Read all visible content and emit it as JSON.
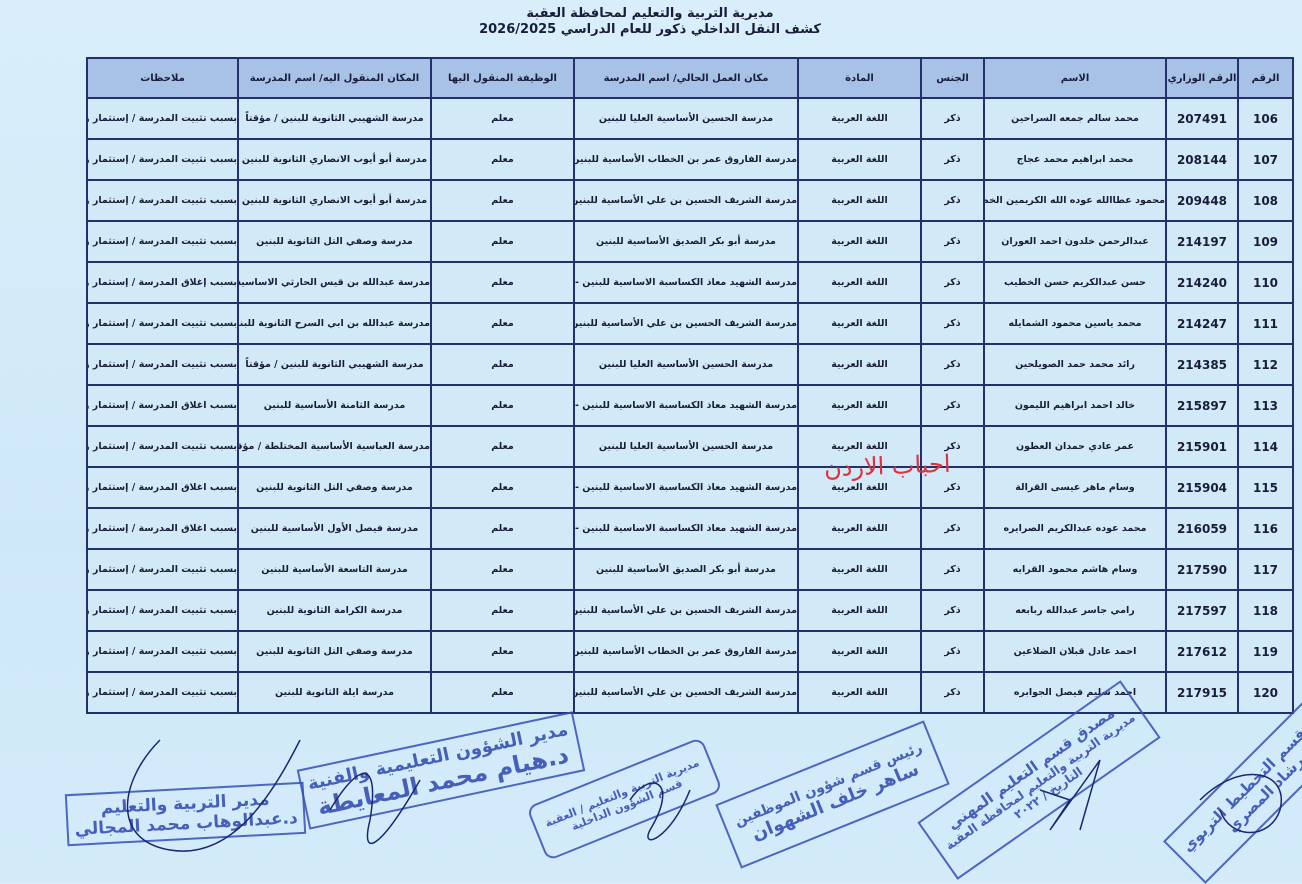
{
  "header": {
    "line1": "مديرية التربية والتعليم لمحافظة العقبة",
    "line2": "كشف النقل الداخلي ذكور للعام الدراسي  2026/2025"
  },
  "table": {
    "columns": [
      "الرقم",
      "الرقم الوزاري",
      "الاسم",
      "الجنس",
      "المادة",
      "مكان العمل الحالي/ اسم المدرسة",
      "الوظيفة المنقول اليها",
      "المكان المنقول اليه/ اسم المدرسة",
      "ملاحظات"
    ],
    "rows": [
      [
        "106",
        "207491",
        "محمد سالم جمعه السراحين",
        "ذكر",
        "اللغة العربية",
        "مدرسة الحسين الأساسية العليا للبنين",
        "معلم",
        "مدرسة الشهيبي الثانوية للبنين / مؤقتاً",
        "بسبب تثبيت المدرسة / إستثمار زوائد"
      ],
      [
        "107",
        "208144",
        "محمد ابراهيم محمد عجاج",
        "ذكر",
        "اللغة العربية",
        "مدرسة الفاروق عمر بن الخطاب الأساسية للبنين",
        "معلم",
        "مدرسة أبو أيوب الانصاري الثانوية للبنين",
        "بسبب تثبيت المدرسة / إستثمار زوائد"
      ],
      [
        "108",
        "209448",
        "محمود عطاالله عوده الله الكريمين الخصبه",
        "ذكر",
        "اللغة العربية",
        "مدرسة الشريف الحسين بن علي الأساسية للبنين",
        "معلم",
        "مدرسة أبو أيوب الانصاري الثانوية للبنين",
        "بسبب تثبيت المدرسة / إستثمار زوائد"
      ],
      [
        "109",
        "214197",
        "عبدالرحمن خلدون احمد العوران",
        "ذكر",
        "اللغة العربية",
        "مدرسة أبو بكر الصديق الأساسية للبنين",
        "معلم",
        "مدرسة وصفي التل الثانوية للبنين",
        "بسبب تثبيت المدرسة / إستثمار زوائد"
      ],
      [
        "110",
        "214240",
        "حسن عبدالكريم حسن الخطيب",
        "ذكر",
        "اللغة العربية",
        "مدرسة الشهيد معاذ الكساسبة الاساسية للبنين - مسائي",
        "معلم",
        "مدرسة عبدالله بن قيس الحارثي الاساسية للبنين",
        "بسبب إغلاق المدرسة / إستثمار زوائد"
      ],
      [
        "111",
        "214247",
        "محمد ياسين محمود الشمايله",
        "ذكر",
        "اللغة العربية",
        "مدرسة الشريف الحسين بن علي الأساسية للبنين",
        "معلم",
        "مدرسة عبدالله بن ابي السرح الثانوية للبنين",
        "بسبب تثبيت المدرسة / إستثمار زوائد"
      ],
      [
        "112",
        "214385",
        "رائد محمد حمد الصويلحين",
        "ذكر",
        "اللغة العربية",
        "مدرسة الحسين الأساسية العليا للبنين",
        "معلم",
        "مدرسة الشهيبي الثانوية للبنين / مؤقتاً",
        "بسبب تثبيت المدرسة / إستثمار زوائد"
      ],
      [
        "113",
        "215897",
        "خالد احمد ابراهيم الليمون",
        "ذكر",
        "اللغة العربية",
        "مدرسة الشهيد معاذ الكساسبة الاساسية للبنين - مسائي",
        "معلم",
        "مدرسة الثامنة الأساسية للبنين",
        "بسبب اغلاق المدرسة / إستثمار زوائد"
      ],
      [
        "114",
        "215901",
        "عمر عادي حمدان العطون",
        "ذكر",
        "اللغة العربية",
        "مدرسة الحسين الأساسية العليا للبنين",
        "معلم",
        "مدرسة العباسية الأساسية المختلطة / مؤقتاً",
        "بسبب تثبيت المدرسة / إستثمار زوائد"
      ],
      [
        "115",
        "215904",
        "وسام ماهر عيسى القرالة",
        "ذكر",
        "اللغة العربية",
        "مدرسة الشهيد معاذ الكساسبة الاساسية للبنين - مسائي",
        "معلم",
        "مدرسة وصفي التل الثانوية للبنين",
        "بسبب اغلاق المدرسة / إستثمار زوائد"
      ],
      [
        "116",
        "216059",
        "محمد عوده عبدالكريم الصرايره",
        "ذكر",
        "اللغة العربية",
        "مدرسة الشهيد معاذ الكساسبة الاساسية للبنين - مسائي",
        "معلم",
        "مدرسة فيصل الأول الأساسية للبنين",
        "بسبب اغلاق المدرسة / إستثمار زوائد"
      ],
      [
        "117",
        "217590",
        "وسام هاشم محمود القرايه",
        "ذكر",
        "اللغة العربية",
        "مدرسة أبو بكر الصديق الأساسية للبنين",
        "معلم",
        "مدرسة التاسعة الأساسية للبنين",
        "بسبب تثبيت المدرسة / إستثمار زوائد"
      ],
      [
        "118",
        "217597",
        "رامي جاسر عبدالله ربابعه",
        "ذكر",
        "اللغة العربية",
        "مدرسة الشريف الحسين بن علي الأساسية للبنين",
        "معلم",
        "مدرسة الكرامة الثانوية للبنين",
        "بسبب تثبيت المدرسة / إستثمار زوائد"
      ],
      [
        "119",
        "217612",
        "احمد عادل قبلان الضلاعين",
        "ذكر",
        "اللغة العربية",
        "مدرسة الفاروق عمر بن الخطاب الأساسية للبنين",
        "معلم",
        "مدرسة وصفي التل الثانوية للبنين",
        "بسبب تثبيت المدرسة / إستثمار زوائد"
      ],
      [
        "120",
        "217915",
        "احمد سليم فيصل الجوابره",
        "ذكر",
        "اللغة العربية",
        "مدرسة الشريف الحسين بن علي الأساسية للبنين",
        "معلم",
        "مدرسة ايلة الثانوية للبنين",
        "بسبب تثبيت المدرسة / إستثمار زوائد"
      ]
    ]
  },
  "watermark": "احباب الاردن",
  "stamps": [
    {
      "line1": "مدير التربية والتعليم",
      "line2": "د.عبدالوهاب محمد المجالي"
    },
    {
      "line1": "مدير الشؤون التعليمية والفنية",
      "line2": "د.هيام محمد المعايطة"
    },
    {
      "line1": "مديرية التربية والتعليم / العقبة",
      "line2": "قسم الشؤون الداخلية"
    },
    {
      "line1": "رئيس قسم شؤون الموظفين",
      "line2": "ساهر خلف الشهوان"
    },
    {
      "line1": "مصدق قسم التعليم المهني",
      "line2": "مديرية التربية والتعليم لمحافظة العقبة",
      "line3": "التاريخ  / ٢٠٢٢"
    },
    {
      "line1": "رئيس قسم التخطيط التربوي",
      "line2": "م. رشاد المصري"
    }
  ],
  "colors": {
    "border": "#22306e",
    "header_bg": "#a7c2e6",
    "cell_bg": "#d2e9f8",
    "stamp": "#2e47b0",
    "watermark": "#e0303a"
  }
}
